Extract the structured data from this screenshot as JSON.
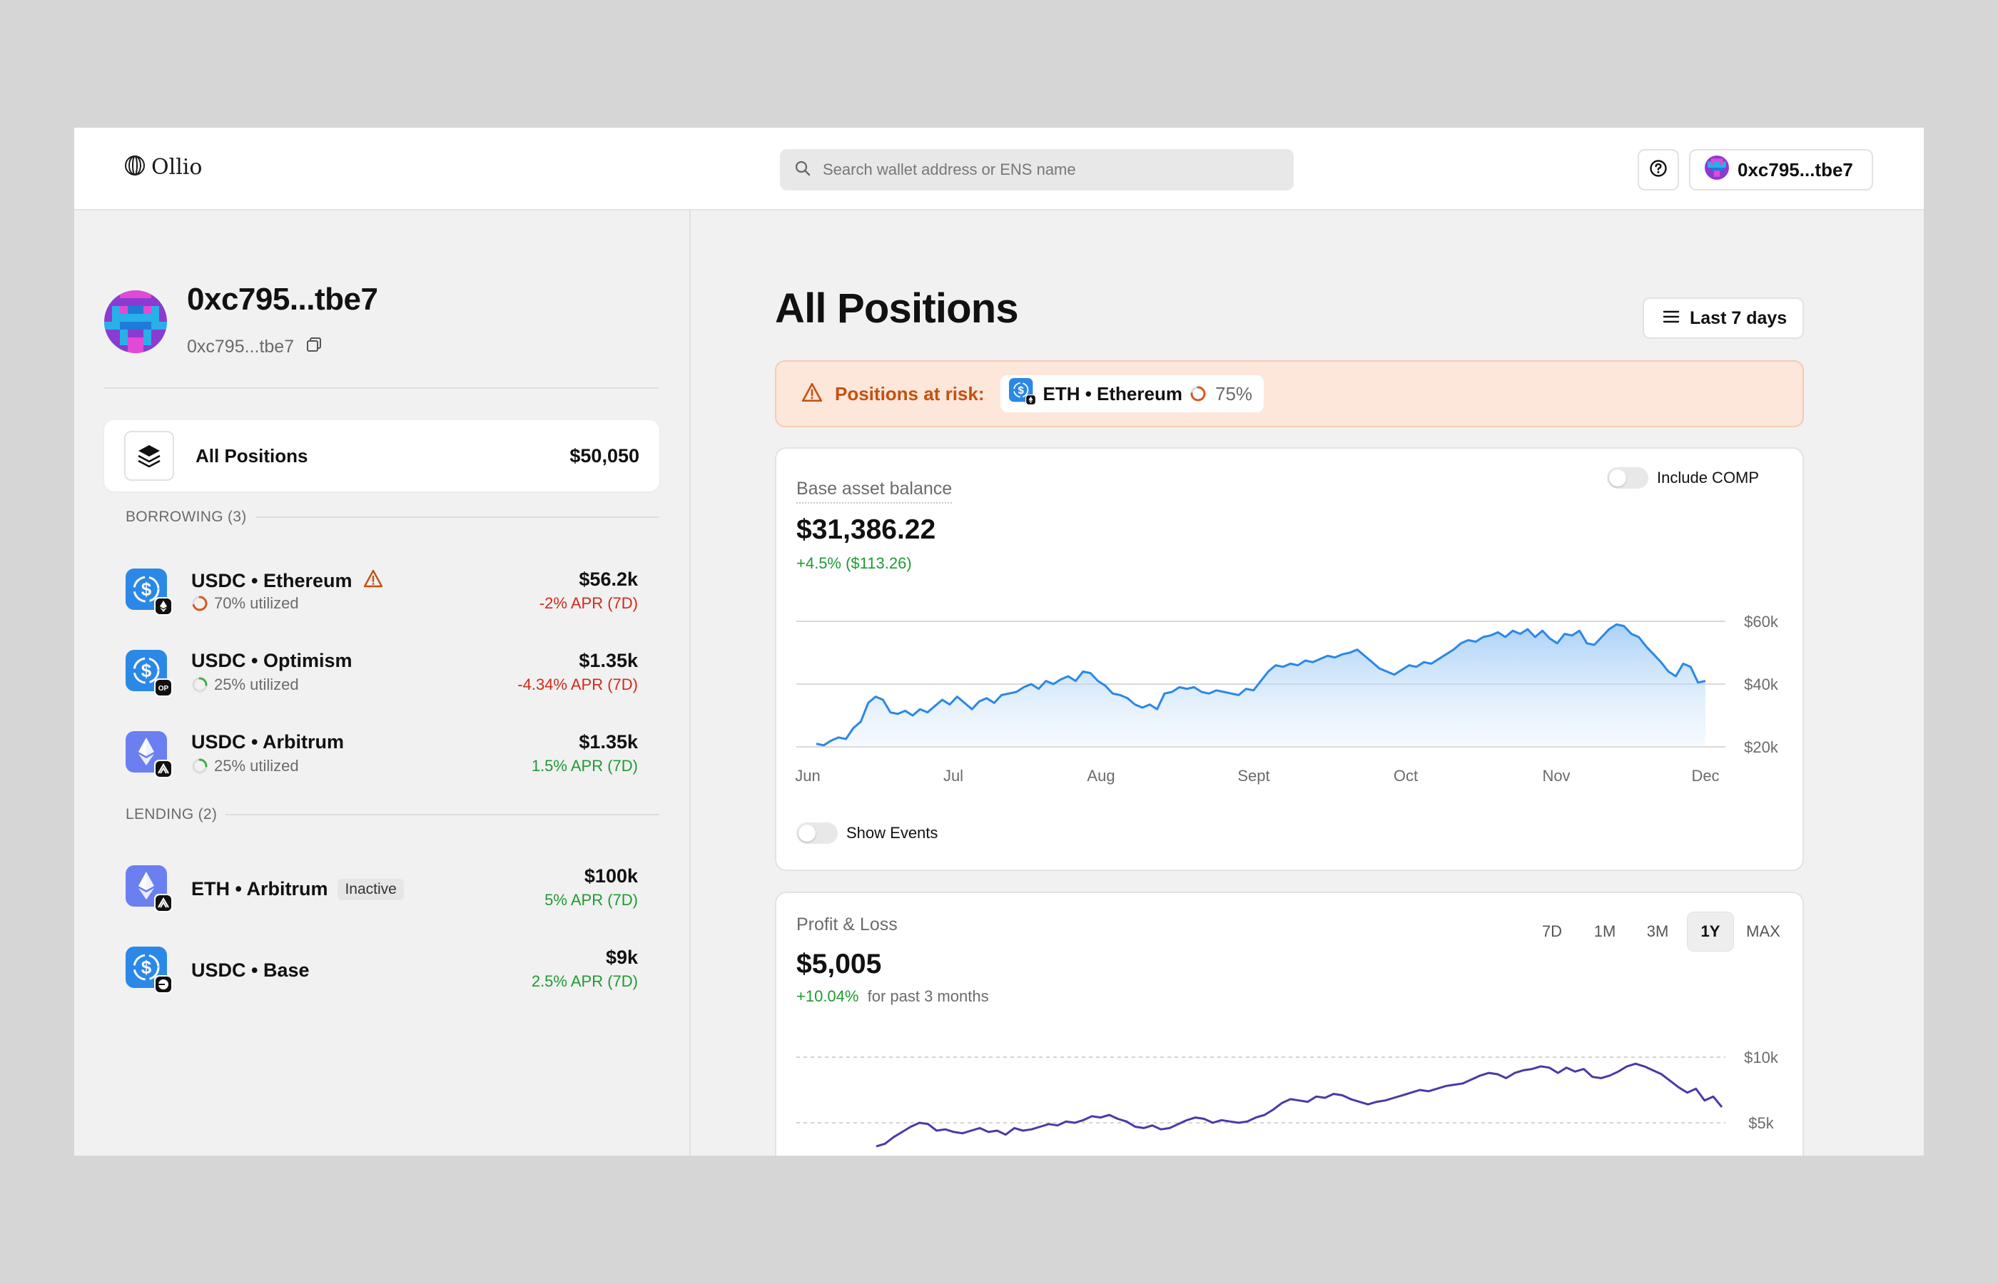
{
  "header": {
    "brand": "Ollio",
    "search_placeholder": "Search wallet address or ENS name",
    "wallet": "0xc795...tbe7"
  },
  "profile": {
    "name": "0xc795...tbe7",
    "address": "0xc795...tbe7"
  },
  "all_positions": {
    "label": "All Positions",
    "value": "$50,050"
  },
  "borrowing": {
    "header": "BORROWING (3)",
    "items": [
      {
        "title": "USDC • Ethereum",
        "utilized": "70% utilized",
        "utilized_level": 0.7,
        "amount": "$56.2k",
        "apr": "-2% APR (7D)",
        "apr_color": "#d02a1e",
        "ring_color": "#d9591f",
        "asset_icon": "usdc-icon",
        "network_icon": "ethereum-icon",
        "warning": true
      },
      {
        "title": "USDC • Optimism",
        "utilized": "25% utilized",
        "utilized_level": 0.25,
        "amount": "$1.35k",
        "apr": "-4.34% APR (7D)",
        "apr_color": "#d02a1e",
        "ring_color": "#3fae45",
        "asset_icon": "usdc-icon",
        "network_icon": "optimism-icon",
        "network_text": "OP",
        "warning": false
      },
      {
        "title": "USDC • Arbitrum",
        "utilized": "25% utilized",
        "utilized_level": 0.25,
        "amount": "$1.35k",
        "apr": "1.5% APR (7D)",
        "apr_color": "#1f9a32",
        "ring_color": "#3fae45",
        "asset_icon": "eth-icon",
        "network_icon": "arbitrum-icon",
        "warning": false
      }
    ]
  },
  "lending": {
    "header": "LENDING (2)",
    "items": [
      {
        "title": "ETH • Arbitrum",
        "badge": "Inactive",
        "amount": "$100k",
        "apr": "5% APR (7D)",
        "apr_color": "#1f9a32",
        "asset_icon": "eth-icon",
        "network_icon": "arbitrum-icon"
      },
      {
        "title": "USDC • Base",
        "amount": "$9k",
        "apr": "2.5% APR (7D)",
        "apr_color": "#1f9a32",
        "asset_icon": "usdc-icon",
        "network_icon": "base-icon"
      }
    ]
  },
  "main": {
    "title": "All Positions",
    "range_label": "Last 7 days",
    "risk": {
      "label": "Positions at risk:",
      "chip": "ETH • Ethereum",
      "percent": "75%",
      "level": 0.75
    }
  },
  "balance_card": {
    "label": "Base asset balance",
    "value": "$31,386.22",
    "change": "+4.5% ($113.26)",
    "include_toggle": "Include COMP",
    "show_events": "Show Events"
  },
  "pnl_card": {
    "label": "Profit & Loss",
    "value": "$5,005",
    "change_pct": "+10.04%",
    "change_suffix": "for past 3 months",
    "timeframes": [
      "7D",
      "1M",
      "3M",
      "1Y",
      "MAX"
    ],
    "active_timeframe": "1Y"
  },
  "colors": {
    "accent_blue": "#2b88e6",
    "accent_purple": "#4a3aa8",
    "risk_orange": "#c4510f",
    "negative": "#d02a1e",
    "positive": "#1f9a32"
  },
  "chart_data": [
    {
      "type": "area",
      "x_labels": [
        "Jun",
        "Jul",
        "Aug",
        "Sept",
        "Oct",
        "Nov",
        "Dec"
      ],
      "y_ticks": [
        "$20k",
        "$40k",
        "$60k"
      ],
      "ylim": [
        20000,
        60000
      ],
      "grid": true,
      "values": [
        21000,
        20500,
        22000,
        23000,
        22500,
        26000,
        28000,
        34000,
        36000,
        35000,
        31000,
        30500,
        31500,
        30000,
        32000,
        31000,
        33000,
        35000,
        33500,
        36000,
        34000,
        32000,
        34500,
        35500,
        34000,
        36500,
        37000,
        37500,
        39000,
        40000,
        38500,
        41000,
        40000,
        41500,
        42500,
        41000,
        44000,
        43500,
        41000,
        39500,
        37000,
        36500,
        35500,
        33500,
        32500,
        33500,
        32000,
        37000,
        37500,
        39000,
        38500,
        39000,
        37500,
        37000,
        38000,
        37500,
        37000,
        36500,
        38500,
        38000,
        41000,
        44000,
        46000,
        45500,
        46500,
        46000,
        47500,
        47000,
        48000,
        49000,
        48500,
        49500,
        50000,
        51000,
        49000,
        47000,
        45000,
        44000,
        43000,
        44500,
        46000,
        45500,
        47000,
        46500,
        48000,
        49500,
        51000,
        53000,
        54000,
        53500,
        55000,
        55500,
        56500,
        55000,
        57000,
        56000,
        57500,
        55000,
        57000,
        54500,
        53000,
        56000,
        55500,
        57000,
        53000,
        52500,
        55000,
        57500,
        59000,
        58500,
        56000,
        55000,
        52000,
        49500,
        47000,
        44000,
        42500,
        46500,
        45500,
        40500,
        41000
      ]
    },
    {
      "type": "line",
      "y_ticks": [
        "$5k",
        "$10k"
      ],
      "ylim": [
        3000,
        10000
      ],
      "grid": true,
      "values": [
        3200,
        3400,
        3900,
        4300,
        4700,
        5000,
        4900,
        4400,
        4500,
        4300,
        4200,
        4400,
        4600,
        4300,
        4400,
        4100,
        4600,
        4400,
        4500,
        4700,
        4900,
        4800,
        5100,
        5000,
        5200,
        5500,
        5400,
        5600,
        5300,
        5100,
        4700,
        4600,
        4800,
        4500,
        4600,
        4900,
        5200,
        5400,
        5300,
        5000,
        5200,
        5100,
        5000,
        5100,
        5400,
        5600,
        6000,
        6500,
        6800,
        6700,
        6600,
        7000,
        6900,
        7200,
        7100,
        6800,
        6600,
        6400,
        6600,
        6700,
        6900,
        7100,
        7300,
        7500,
        7400,
        7600,
        7800,
        7900,
        8000,
        8300,
        8600,
        8800,
        8700,
        8400,
        8800,
        9000,
        9100,
        9300,
        9200,
        8800,
        9200,
        8900,
        9100,
        8500,
        8400,
        8600,
        8900,
        9300,
        9500,
        9300,
        9000,
        8700,
        8200,
        7700,
        7300,
        7600,
        6700,
        7000,
        6200
      ]
    }
  ]
}
